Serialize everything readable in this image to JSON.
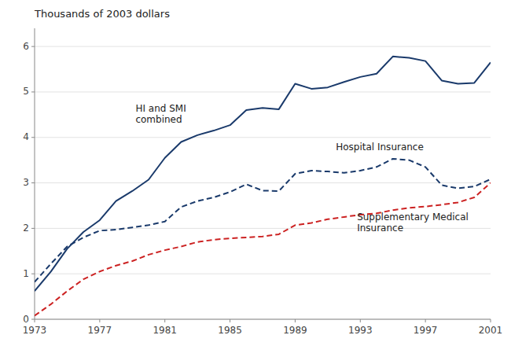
{
  "chart_data": {
    "type": "line",
    "title": "Thousands of 2003 dollars",
    "x": [
      1973,
      1974,
      1975,
      1976,
      1977,
      1978,
      1979,
      1980,
      1981,
      1982,
      1983,
      1984,
      1985,
      1986,
      1987,
      1988,
      1989,
      1990,
      1991,
      1992,
      1993,
      1994,
      1995,
      1996,
      1997,
      1998,
      1999,
      2000,
      2001
    ],
    "series": [
      {
        "color": "#1a3a6b",
        "line_style": "solid",
        "values": [
          0.62,
          1.05,
          1.55,
          1.92,
          2.18,
          2.6,
          2.82,
          3.07,
          3.55,
          3.9,
          4.05,
          4.15,
          4.27,
          4.6,
          4.65,
          4.62,
          5.18,
          5.07,
          5.1,
          5.22,
          5.33,
          5.4,
          5.78,
          5.75,
          5.68,
          5.25,
          5.18,
          5.2,
          5.65
        ]
      },
      {
        "color": "#1a3a6b",
        "line_style": "dashed",
        "values": [
          0.82,
          1.22,
          1.6,
          1.8,
          1.95,
          1.97,
          2.02,
          2.07,
          2.15,
          2.47,
          2.6,
          2.68,
          2.8,
          2.97,
          2.83,
          2.82,
          3.2,
          3.27,
          3.25,
          3.22,
          3.27,
          3.35,
          3.53,
          3.5,
          3.35,
          2.95,
          2.88,
          2.92,
          3.08
        ]
      },
      {
        "color": "#cc2222",
        "line_style": "dashed",
        "values": [
          0.08,
          0.33,
          0.62,
          0.88,
          1.05,
          1.18,
          1.28,
          1.42,
          1.52,
          1.6,
          1.7,
          1.75,
          1.78,
          1.8,
          1.82,
          1.87,
          2.07,
          2.12,
          2.2,
          2.25,
          2.3,
          2.33,
          2.4,
          2.45,
          2.48,
          2.52,
          2.57,
          2.68,
          3.0
        ]
      }
    ],
    "annotations": [
      {
        "text": "HI and SMI\ncombined",
        "x": 1979.2,
        "y": 4.52
      },
      {
        "text": "Hospital Insurance",
        "x": 1991.5,
        "y": 3.78
      },
      {
        "text": "Supplementary Medical\nInsurance",
        "x": 1992.8,
        "y": 2.12
      }
    ],
    "xlim": [
      1973,
      2001
    ],
    "xticks": [
      1973,
      1977,
      1981,
      1985,
      1989,
      1993,
      1997,
      2001
    ],
    "ylim": [
      0,
      6.4
    ],
    "yticks": [
      0,
      1,
      2,
      3,
      4,
      5,
      6
    ],
    "grid": "y"
  }
}
